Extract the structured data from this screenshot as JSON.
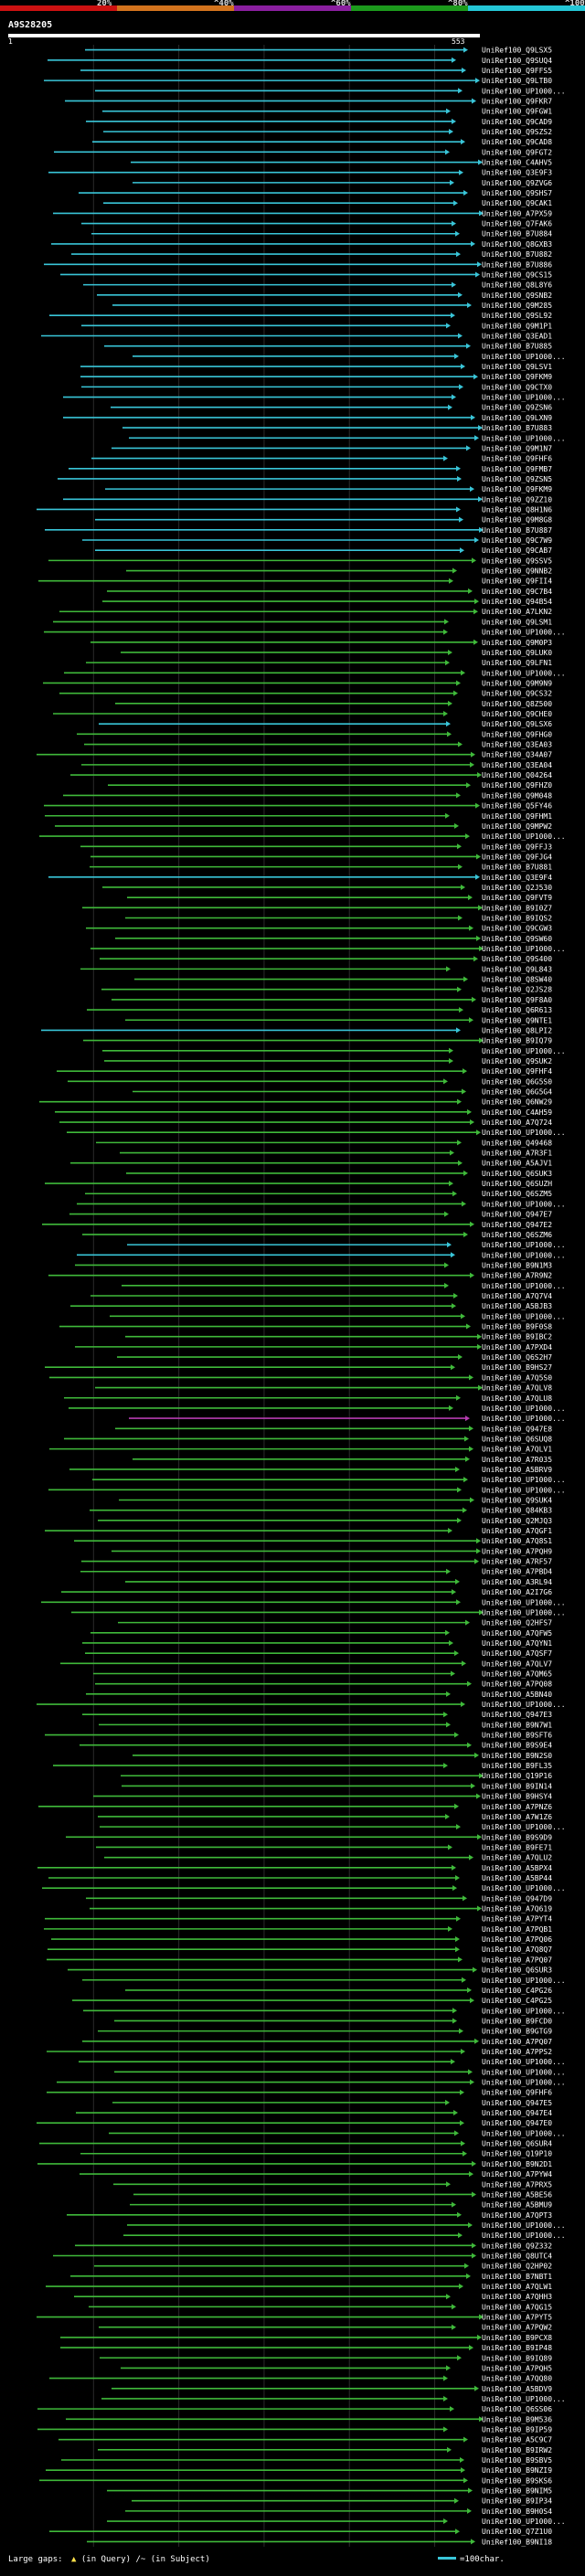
{
  "scale": {
    "labels": [
      "20%",
      "^40%",
      "^60%",
      "^80%",
      "^100%"
    ],
    "colors": [
      "#cc1111",
      "#d2731d",
      "#8b1fa0",
      "#1c9a1c",
      "#24c6d6"
    ]
  },
  "query": {
    "title": "A9S28205",
    "start": "1",
    "end": "553"
  },
  "colors": {
    "high": "#39c5d8",
    "mid": "#3fb93a",
    "low": "#b63cb0",
    "background": "#000000",
    "grid": "#2b2b2b"
  },
  "legend": {
    "large_gaps": "Large gaps:",
    "in_query": "(in Query)",
    "in_subject": "/~ (in Subject)",
    "scale_text": "=100char."
  },
  "hits": [
    "UniRef100_Q9LSX5",
    "UniRef100_Q9SUQ4",
    "UniRef100_Q9FFS5",
    "UniRef100_Q9LTB0",
    "UniRef100_UP1000...",
    "UniRef100_Q9FKR7",
    "UniRef100_Q9FGW1",
    "UniRef100_Q9CAD9",
    "UniRef100_Q9SZS2",
    "UniRef100_Q9CAD8",
    "UniRef100_Q9FGT2",
    "UniRef100_C4AHV5",
    "UniRef100_Q3E9F3",
    "UniRef100_Q9ZVG6",
    "UniRef100_Q9SHS7",
    "UniRef100_Q9CAK1",
    "UniRef100_A7PX59",
    "UniRef100_Q7FAK6",
    "UniRef100_B7U884",
    "UniRef100_Q8GXB3",
    "UniRef100_B7U882",
    "UniRef100_B7U886",
    "UniRef100_Q9CS15",
    "UniRef100_Q8L8Y6",
    "UniRef100_Q9SNB2",
    "UniRef100_Q9M285",
    "UniRef100_Q9SL92",
    "UniRef100_Q9M1P1",
    "UniRef100_Q3EAD1",
    "UniRef100_B7U885",
    "UniRef100_UP1000...",
    "UniRef100_Q9LSV1",
    "UniRef100_Q9FKM9",
    "UniRef100_Q9CTX0",
    "UniRef100_UP1000...",
    "UniRef100_Q9ZSN6",
    "UniRef100_Q9LXN9",
    "UniRef100_B7U883",
    "UniRef100_UP1000...",
    "UniRef100_Q9M1N7",
    "UniRef100_Q9FHF6",
    "UniRef100_Q9FMB7",
    "UniRef100_Q9ZSN5",
    "UniRef100_Q9FKM9",
    "UniRef100_Q9ZZ10",
    "UniRef100_Q8H1N6",
    "UniRef100_Q9M8G8",
    "UniRef100_B7U887",
    "UniRef100_Q9C7W9",
    "UniRef100_Q9CAB7",
    "UniRef100_Q9SSV5",
    "UniRef100_Q9NNB2",
    "UniRef100_Q9FII4",
    "UniRef100_Q9C7B4",
    "UniRef100_Q94B54",
    "UniRef100_A7LKN2",
    "UniRef100_Q9LSM1",
    "UniRef100_UP1000...",
    "UniRef100_Q9M0P3",
    "UniRef100_Q9LUK0",
    "UniRef100_Q9LFN1",
    "UniRef100_UP1000...",
    "UniRef100_Q9M9N9",
    "UniRef100_Q9CS32",
    "UniRef100_Q8Z500",
    "UniRef100_Q9CHE0",
    "UniRef100_Q9LSX6",
    "UniRef100_Q9FHG0",
    "UniRef100_Q3EA03",
    "UniRef100_Q34A07",
    "UniRef100_Q3EA04",
    "UniRef100_Q04264",
    "UniRef100_Q9FHZ0",
    "UniRef100_Q9M048",
    "UniRef100_Q5FY46",
    "UniRef100_Q9FHM1",
    "UniRef100_Q9MPW2",
    "UniRef100_UP1000...",
    "UniRef100_Q9FFJ3",
    "UniRef100_Q9FJG4",
    "UniRef100_B7U881",
    "UniRef100_Q3E9F4",
    "UniRef100_Q2J530",
    "UniRef100_Q9FVT9",
    "UniRef100_B9I0Z7",
    "UniRef100_B9IQS2",
    "UniRef100_Q9CGW3",
    "UniRef100_Q9SW60",
    "UniRef100_UP1000...",
    "UniRef100_Q9S400",
    "UniRef100_Q9L843",
    "UniRef100_Q8SW40",
    "UniRef100_Q2JS28",
    "UniRef100_Q9F8A0",
    "UniRef100_Q6R613",
    "UniRef100_Q9NTE1",
    "UniRef100_Q8LPI2",
    "UniRef100_B9IQ79",
    "UniRef100_UP1000...",
    "UniRef100_Q9SUK2",
    "UniRef100_Q9FHF4",
    "UniRef100_Q6G5S0",
    "UniRef100_Q6G5G4",
    "UniRef100_Q6NW29",
    "UniRef100_C4AH59",
    "UniRef100_A7Q724",
    "UniRef100_UP1000...",
    "UniRef100_Q49468",
    "UniRef100_A7R3F1",
    "UniRef100_A5AJV1",
    "UniRef100_Q6SUK3",
    "UniRef100_Q6SUZH",
    "UniRef100_Q6SZM5",
    "UniRef100_UP1000...",
    "UniRef100_Q947E7",
    "UniRef100_Q947E2",
    "UniRef100_Q6SZM6",
    "UniRef100_UP1000...",
    "UniRef100_UP1000...",
    "UniRef100_B9N1M3",
    "UniRef100_A7R9N2",
    "UniRef100_UP1000...",
    "UniRef100_A7Q7V4",
    "UniRef100_A5BJB3",
    "UniRef100_UP1000...",
    "UniRef100_B9F0S8",
    "UniRef100_B9IBC2",
    "UniRef100_A7PXD4",
    "UniRef100_Q6S2H7",
    "UniRef100_B9HS27",
    "UniRef100_A7Q5S0",
    "UniRef100_A7QLV8",
    "UniRef100_A7QLU8",
    "UniRef100_UP1000...",
    "UniRef100_UP1000...",
    "UniRef100_Q947E8",
    "UniRef100_Q6SUQ8",
    "UniRef100_A7QLV1",
    "UniRef100_A7R035",
    "UniRef100_A5BRV9",
    "UniRef100_UP1000...",
    "UniRef100_UP1000...",
    "UniRef100_Q9SUK4",
    "UniRef100_Q84KB3",
    "UniRef100_Q2MJQ3",
    "UniRef100_A7QGF1",
    "UniRef100_A7Q8S1",
    "UniRef100_A7PQH9",
    "UniRef100_A7RF57",
    "UniRef100_A7PBD4",
    "UniRef100_A3RL94",
    "UniRef100_A2I7G6",
    "UniRef100_UP1000...",
    "UniRef100_UP1000...",
    "UniRef100_Q2HFS7",
    "UniRef100_A7QFW5",
    "UniRef100_A7QYN1",
    "UniRef100_A7QSF7",
    "UniRef100_A7QLV7",
    "UniRef100_A7QM65",
    "UniRef100_A7PQ08",
    "UniRef100_A5BN40",
    "UniRef100_UP1000...",
    "UniRef100_Q947E3",
    "UniRef100_B9N7W1",
    "UniRef100_B9SFT6",
    "UniRef100_B9S9E4",
    "UniRef100_B9N2S0",
    "UniRef100_B9FL35",
    "UniRef100_Q19P16",
    "UniRef100_B9IN14",
    "UniRef100_B9HSY4",
    "UniRef100_A7PNZ6",
    "UniRef100_A7W1Z6",
    "UniRef100_UP1000...",
    "UniRef100_B9S9D9",
    "UniRef100_B9FE71",
    "UniRef100_A7QLU2",
    "UniRef100_A5BPX4",
    "UniRef100_A5BP44",
    "UniRef100_UP1000...",
    "UniRef100_Q947D9",
    "UniRef100_A7Q619",
    "UniRef100_A7PYT4",
    "UniRef100_A7PQB1",
    "UniRef100_A7PQ06",
    "UniRef100_A7Q8Q7",
    "UniRef100_A7PQ07",
    "UniRef100_Q6SUR3",
    "UniRef100_UP1000...",
    "UniRef100_C4PG26",
    "UniRef100_C4PG25",
    "UniRef100_UP1000...",
    "UniRef100_B9FCD0",
    "UniRef100_B9GTG9",
    "UniRef100_A7PQ07",
    "UniRef100_A7PPS2",
    "UniRef100_UP1000...",
    "UniRef100_UP1000...",
    "UniRef100_UP1000...",
    "UniRef100_Q9FHF6",
    "UniRef100_Q947E5",
    "UniRef100_Q947E4",
    "UniRef100_Q947E0",
    "UniRef100_UP1000...",
    "UniRef100_Q6SUR4",
    "UniRef100_Q19P10",
    "UniRef100_B9N2D1",
    "UniRef100_A7PYW4",
    "UniRef100_A7PRX5",
    "UniRef100_A5BE56",
    "UniRef100_A5BMU9",
    "UniRef100_A7QPT3",
    "UniRef100_UP1000...",
    "UniRef100_UP1000...",
    "UniRef100_Q9Z332",
    "UniRef100_Q8UTC4",
    "UniRef100_Q2HP02",
    "UniRef100_B7NBT1",
    "UniRef100_A7QLW1",
    "UniRef100_A7QHH3",
    "UniRef100_A7QG15",
    "UniRef100_A7PYT5",
    "UniRef100_A7PQW2",
    "UniRef100_B9PCX8",
    "UniRef100_B9IP48",
    "UniRef100_B9IQ89",
    "UniRef100_A7PQH5",
    "UniRef100_A7QQ80",
    "UniRef100_A5BDV9",
    "UniRef100_UP1000...",
    "UniRef100_Q6SS06",
    "UniRef100_B9M536",
    "UniRef100_B9IP59",
    "UniRef100_A5C9C7",
    "UniRef100_B9IRW2",
    "UniRef100_B9SBV5",
    "UniRef100_B9NZI9",
    "UniRef100_B9SKS6",
    "UniRef100_B9NIM5",
    "UniRef100_B9IP34",
    "UniRef100_B9H0S4",
    "UniRef100_UP1000...",
    "UniRef100_Q7Z1U0",
    "UniRef100_B9NI18"
  ]
}
